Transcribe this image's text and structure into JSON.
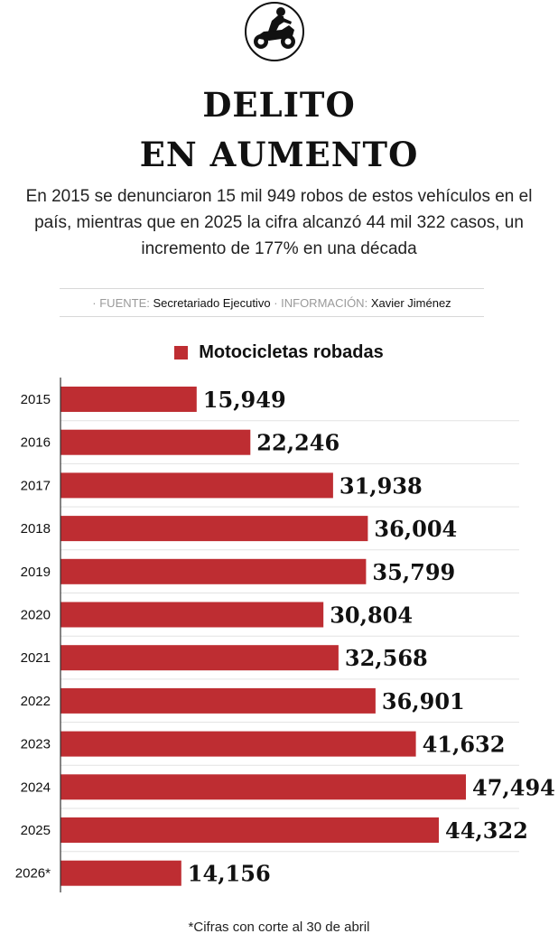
{
  "header": {
    "icon": "motorcycle-rider-icon",
    "title_line1": "DELITO",
    "title_line2": "EN AUMENTO",
    "subtitle": "En 2015 se denunciaron 15 mil 949 robos de estos vehículos en el país, mientras que en 2025 la cifra alcanzó 44 mil 322 casos, un incremento de 177% en una década"
  },
  "source": {
    "fuente_label": "· FUENTE:",
    "fuente_value": "Secretariado Ejecutivo",
    "info_label": "· INFORMACIÓN:",
    "info_value": "Xavier Jiménez"
  },
  "footnote": "*Cifras con corte al 30 de abril",
  "colors": {
    "bar": "#be2d32",
    "text": "#111111",
    "grid": "#e3e3e3"
  },
  "chart_data": {
    "type": "bar",
    "orientation": "horizontal",
    "categories": [
      "2015",
      "2016",
      "2017",
      "2018",
      "2019",
      "2020",
      "2021",
      "2022",
      "2023",
      "2024",
      "2025",
      "2026*"
    ],
    "series": [
      {
        "name": "Motocicletas robadas",
        "values": [
          15949,
          22246,
          31938,
          36004,
          35799,
          30804,
          32568,
          36901,
          41632,
          47494,
          44322,
          14156
        ],
        "labels": [
          "15,949",
          "22,246",
          "31,938",
          "36,004",
          "35,799",
          "30,804",
          "32,568",
          "36,901",
          "41,632",
          "47,494",
          "44,322",
          "14,156"
        ]
      }
    ],
    "title": "",
    "xlabel": "",
    "ylabel": "",
    "xlim": [
      0,
      47494
    ],
    "grid": false,
    "legend": "top-center"
  }
}
